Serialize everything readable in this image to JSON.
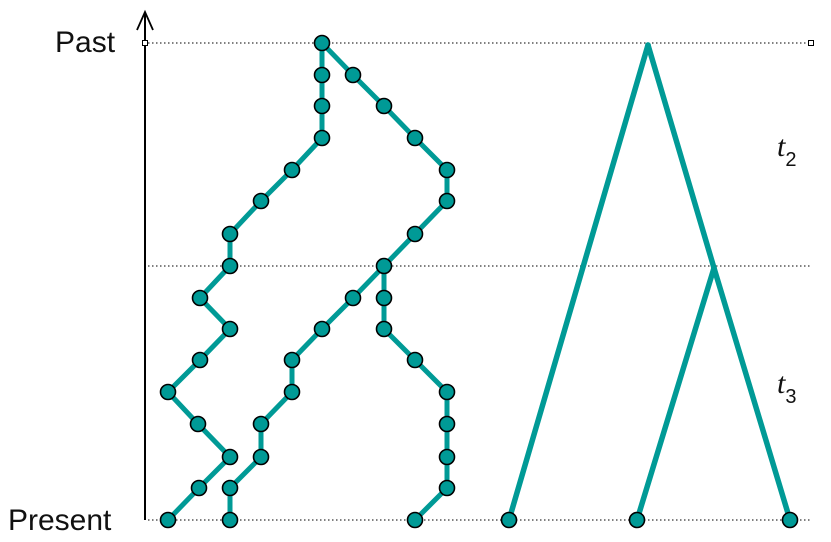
{
  "axis": {
    "past_label": "Past",
    "present_label": "Present"
  },
  "intervals": [
    {
      "italic": "t",
      "sub": "2"
    },
    {
      "italic": "t",
      "sub": "3"
    }
  ],
  "colors": {
    "lineage": "#009a96",
    "node_fill": "#009a96",
    "node_stroke": "#000000",
    "axis": "#000000"
  },
  "legend_glyphs": {
    "arrow": "up-arrow-icon",
    "time_markers": "small-square-icon"
  }
}
